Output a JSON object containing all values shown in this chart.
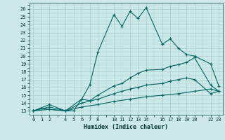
{
  "xlabel": "Humidex (Indice chaleur)",
  "bg_color": "#cce8e8",
  "grid_color": "#aacccc",
  "line_color": "#006666",
  "xlim": [
    -0.5,
    23.5
  ],
  "ylim": [
    12.5,
    26.8
  ],
  "xticks": [
    0,
    1,
    2,
    4,
    5,
    6,
    7,
    8,
    10,
    11,
    12,
    13,
    14,
    16,
    17,
    18,
    19,
    20,
    22,
    23
  ],
  "yticks": [
    13,
    14,
    15,
    16,
    17,
    18,
    19,
    20,
    21,
    22,
    23,
    24,
    25,
    26
  ],
  "lines": [
    {
      "x": [
        0,
        1,
        4,
        5,
        6,
        7,
        8,
        10,
        11,
        12,
        13,
        14,
        16,
        17,
        18,
        19,
        20,
        22,
        23
      ],
      "y": [
        13,
        13.3,
        13.0,
        13.0,
        14.5,
        16.3,
        20.5,
        25.3,
        23.8,
        25.7,
        24.8,
        26.2,
        21.5,
        22.2,
        21.0,
        20.2,
        20.0,
        19.0,
        16.2
      ]
    },
    {
      "x": [
        0,
        2,
        4,
        6,
        7,
        8,
        10,
        11,
        12,
        13,
        14,
        16,
        17,
        18,
        19,
        20,
        22,
        23
      ],
      "y": [
        13,
        13.8,
        13.0,
        14.5,
        14.3,
        15.0,
        16.2,
        16.5,
        17.2,
        17.8,
        18.2,
        18.3,
        18.7,
        18.9,
        19.2,
        19.8,
        16.3,
        15.5
      ]
    },
    {
      "x": [
        0,
        2,
        4,
        6,
        8,
        10,
        11,
        12,
        13,
        14,
        16,
        17,
        18,
        19,
        20,
        22,
        23
      ],
      "y": [
        13,
        13.5,
        13.0,
        14.0,
        14.5,
        15.2,
        15.5,
        15.8,
        16.0,
        16.3,
        16.5,
        16.8,
        17.0,
        17.2,
        17.0,
        15.2,
        15.5
      ]
    },
    {
      "x": [
        0,
        2,
        4,
        6,
        8,
        10,
        12,
        14,
        16,
        18,
        20,
        22,
        23
      ],
      "y": [
        13,
        13.2,
        13.0,
        13.5,
        13.8,
        14.2,
        14.5,
        14.8,
        15.0,
        15.2,
        15.5,
        15.8,
        15.5
      ]
    }
  ]
}
